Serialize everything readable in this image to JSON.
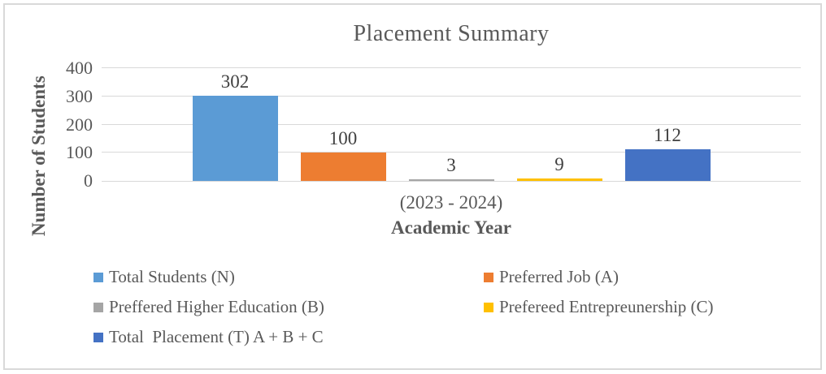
{
  "chart_data": {
    "type": "bar",
    "title": "Placement Summary",
    "xlabel": "Academic Year",
    "ylabel": "Number of Students",
    "categories": [
      "(2023 - 2024)"
    ],
    "series": [
      {
        "name": "Total Students (N)",
        "values": [
          302
        ],
        "color": "#5b9bd5"
      },
      {
        "name": "Preferred Job (A)",
        "values": [
          100
        ],
        "color": "#ed7d31"
      },
      {
        "name": "Preffered Higher Education (B)",
        "values": [
          3
        ],
        "color": "#a5a5a5"
      },
      {
        "name": "Prefereed Entrepreunership (C)",
        "values": [
          9
        ],
        "color": "#ffc000"
      },
      {
        "name": "Total  Placement (T) A + B + C",
        "values": [
          112
        ],
        "color": "#4472c4"
      }
    ],
    "ylim": [
      0,
      400
    ],
    "yticks": [
      0,
      100,
      200,
      300,
      400
    ],
    "grid": true,
    "legend_position": "bottom",
    "data_labels": true
  },
  "colors": {
    "axis_text": "#595959",
    "data_label_text": "#404040",
    "gridline": "#d9d9d9",
    "frame_border": "#d9d9d9",
    "background": "#ffffff"
  }
}
